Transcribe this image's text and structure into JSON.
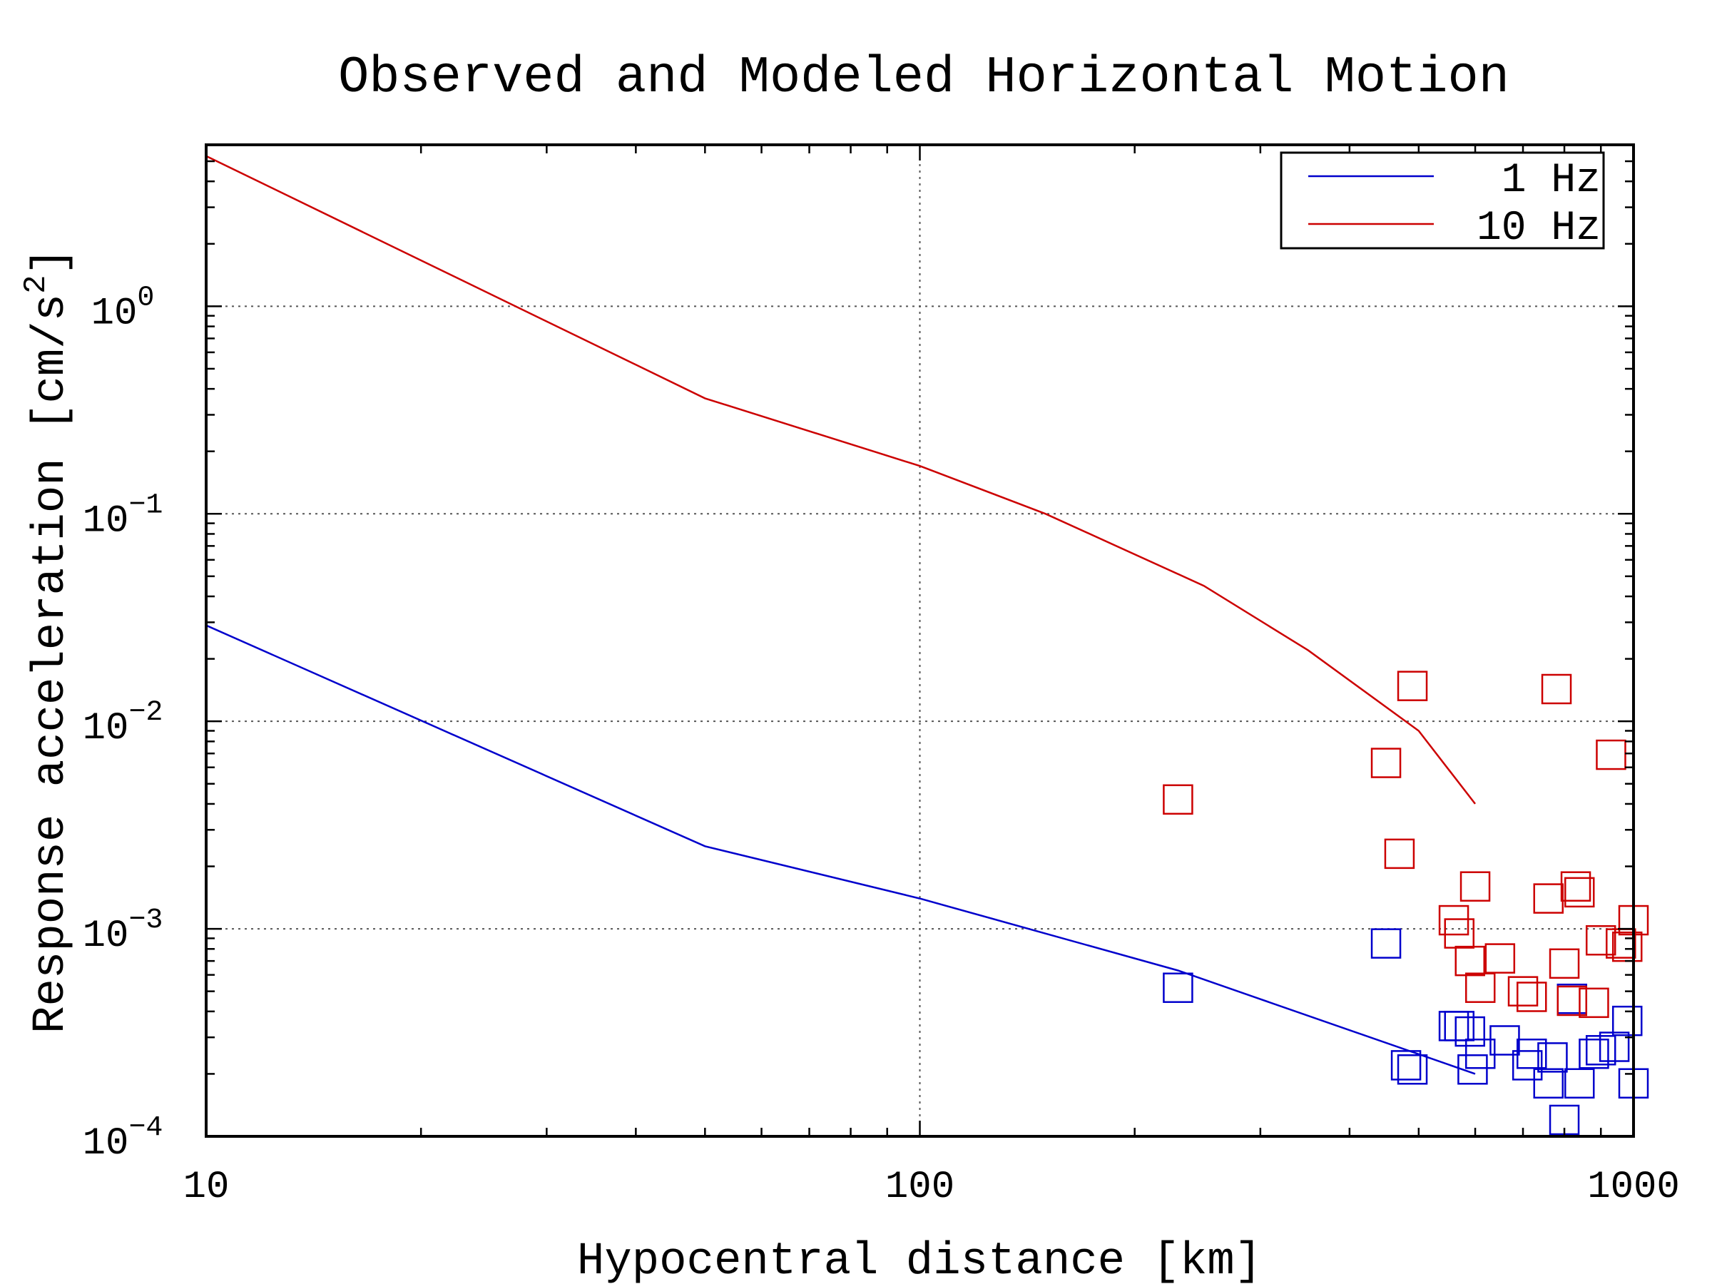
{
  "chart_data": {
    "type": "scatter",
    "title": "Observed and Modeled Horizontal Motion",
    "xlabel": "Hypocentral distance [km]",
    "ylabel": "Response acceleration [cm/s²]",
    "ylabel_parts": {
      "main": "Response acceleration [cm/s",
      "sup": "2",
      "tail": "]"
    },
    "x_scale": "log",
    "y_scale": "log",
    "xlim": [
      10,
      1000
    ],
    "ylim": [
      0.0001,
      6
    ],
    "x_ticks": [
      {
        "value": 10,
        "label": "10"
      },
      {
        "value": 100,
        "label": "100"
      },
      {
        "value": 1000,
        "label": "1000"
      }
    ],
    "y_ticks": [
      {
        "value": 0.0001,
        "base": "10",
        "exp": "−4"
      },
      {
        "value": 0.001,
        "base": "10",
        "exp": "−3"
      },
      {
        "value": 0.01,
        "base": "10",
        "exp": "−2"
      },
      {
        "value": 0.1,
        "base": "10",
        "exp": "−1"
      },
      {
        "value": 1,
        "base": "10",
        "exp": "0"
      }
    ],
    "grid": true,
    "legend": {
      "position": "top-right"
    },
    "series": [
      {
        "name": "1 Hz",
        "color": "#0000cc",
        "line": [
          [
            10,
            0.029
          ],
          [
            50,
            0.0025
          ],
          [
            100,
            0.0014
          ],
          [
            230,
            0.00063
          ],
          [
            600,
            0.0002
          ]
        ],
        "points": [
          [
            230,
            0.00052
          ],
          [
            450,
            0.00085
          ],
          [
            480,
            0.00022
          ],
          [
            490,
            0.00021
          ],
          [
            560,
            0.00034
          ],
          [
            570,
            0.00034
          ],
          [
            590,
            0.00032
          ],
          [
            595,
            0.00021
          ],
          [
            610,
            0.00025
          ],
          [
            660,
            0.00029
          ],
          [
            710,
            0.00022
          ],
          [
            720,
            0.00025
          ],
          [
            760,
            0.00018
          ],
          [
            770,
            0.00024
          ],
          [
            800,
            0.00012
          ],
          [
            820,
            0.00046
          ],
          [
            840,
            0.00018
          ],
          [
            880,
            0.00025
          ],
          [
            900,
            0.00026
          ],
          [
            940,
            0.00027
          ],
          [
            980,
            0.00036
          ],
          [
            1000,
            0.00018
          ]
        ]
      },
      {
        "name": "10 Hz",
        "color": "#cc0000",
        "line": [
          [
            10,
            5.3
          ],
          [
            50,
            0.36
          ],
          [
            100,
            0.17
          ],
          [
            150,
            0.1
          ],
          [
            250,
            0.045
          ],
          [
            350,
            0.022
          ],
          [
            500,
            0.009
          ],
          [
            600,
            0.004
          ]
        ],
        "points": [
          [
            230,
            0.0042
          ],
          [
            450,
            0.0063
          ],
          [
            470,
            0.0023
          ],
          [
            490,
            0.0148
          ],
          [
            560,
            0.0011
          ],
          [
            570,
            0.00095
          ],
          [
            590,
            0.0007
          ],
          [
            600,
            0.0016
          ],
          [
            610,
            0.00052
          ],
          [
            650,
            0.00072
          ],
          [
            700,
            0.0005
          ],
          [
            720,
            0.00047
          ],
          [
            760,
            0.0014
          ],
          [
            780,
            0.0143
          ],
          [
            800,
            0.00068
          ],
          [
            820,
            0.00045
          ],
          [
            830,
            0.0016
          ],
          [
            840,
            0.0015
          ],
          [
            880,
            0.00044
          ],
          [
            900,
            0.00088
          ],
          [
            930,
            0.0069
          ],
          [
            960,
            0.00085
          ],
          [
            980,
            0.00082
          ],
          [
            1000,
            0.0011
          ]
        ]
      }
    ]
  }
}
